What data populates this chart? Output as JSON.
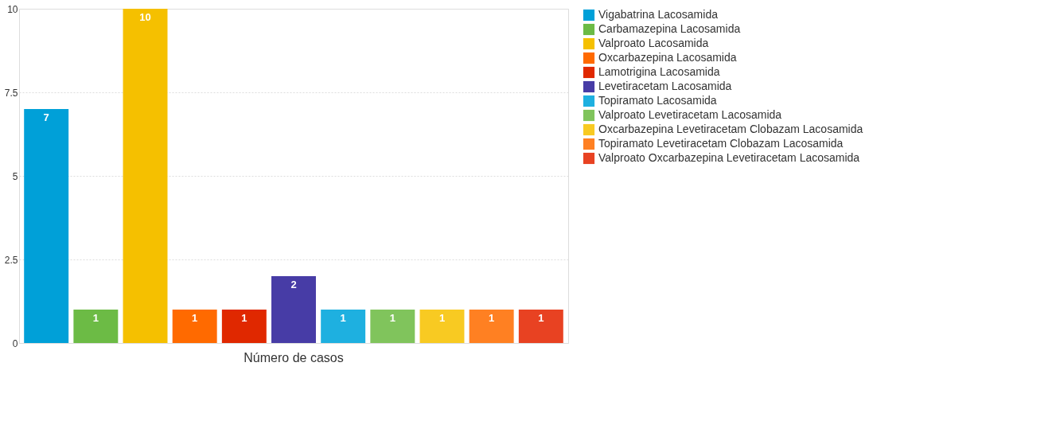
{
  "chart_data": {
    "type": "bar",
    "categories": [
      "Número de casos"
    ],
    "series": [
      {
        "name": "Vigabatrina  Lacosamida",
        "color": "#00a0d8",
        "values": [
          7
        ]
      },
      {
        "name": "Carbamazepina  Lacosamida",
        "color": "#6cbb45",
        "values": [
          1
        ]
      },
      {
        "name": "Valproato Lacosamida",
        "color": "#f5c000",
        "values": [
          10
        ]
      },
      {
        "name": "Oxcarbazepina Lacosamida",
        "color": "#ff6a00",
        "values": [
          1
        ]
      },
      {
        "name": "Lamotrigina Lacosamida",
        "color": "#e02800",
        "values": [
          1
        ]
      },
      {
        "name": "Levetiracetam  Lacosamida",
        "color": "#473ca6",
        "values": [
          2
        ]
      },
      {
        "name": "Topiramato Lacosamida",
        "color": "#1eb0e0",
        "values": [
          1
        ]
      },
      {
        "name": "Valproato Levetiracetam  Lacosamida",
        "color": "#80c45c",
        "values": [
          1
        ]
      },
      {
        "name": "Oxcarbazepina  Levetiracetam Clobazam Lacosamida",
        "color": "#f8ca22",
        "values": [
          1
        ]
      },
      {
        "name": "Topiramato  Levetiracetam  Clobazam  Lacosamida",
        "color": "#ff8022",
        "values": [
          1
        ]
      },
      {
        "name": "Valproato   Oxcarbazepina  Levetiracetam  Lacosamida",
        "color": "#e84222",
        "values": [
          1
        ]
      }
    ],
    "ylim": [
      0,
      10
    ],
    "yticks": [
      0,
      2.5,
      5,
      7.5,
      10
    ],
    "grid": "y",
    "legend": "right",
    "data_labels": true
  }
}
